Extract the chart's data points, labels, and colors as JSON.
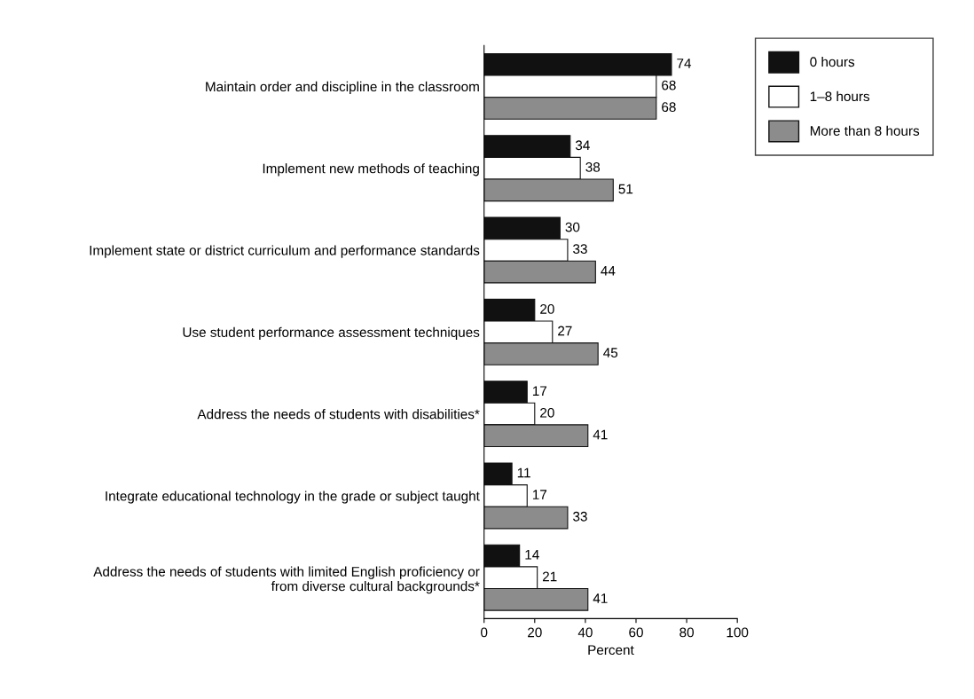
{
  "chart_data": {
    "type": "bar",
    "orientation": "horizontal",
    "categories": [
      "Maintain order and discipline in the classroom",
      "Implement new methods of teaching",
      "Implement state or district curriculum and performance standards",
      "Use student performance assessment techniques",
      "Address the needs of students with disabilities*",
      "Integrate educational technology in the grade or subject taught",
      "Address the needs of students with limited English proficiency or\nfrom diverse cultural backgrounds*"
    ],
    "series": [
      {
        "name": "0 hours",
        "color": "#111111",
        "values": [
          74,
          34,
          30,
          20,
          17,
          11,
          14
        ]
      },
      {
        "name": "1–8 hours",
        "color": "#ffffff",
        "values": [
          68,
          38,
          33,
          27,
          20,
          17,
          21
        ]
      },
      {
        "name": "More than 8 hours",
        "color": "#8c8c8c",
        "values": [
          68,
          51,
          44,
          45,
          41,
          33,
          41
        ]
      }
    ],
    "xlim": [
      0,
      100
    ],
    "xticks": [
      0,
      20,
      40,
      60,
      80,
      100
    ],
    "xlabel": "Percent",
    "data_labels": true,
    "legend": "top right",
    "grid": false
  }
}
